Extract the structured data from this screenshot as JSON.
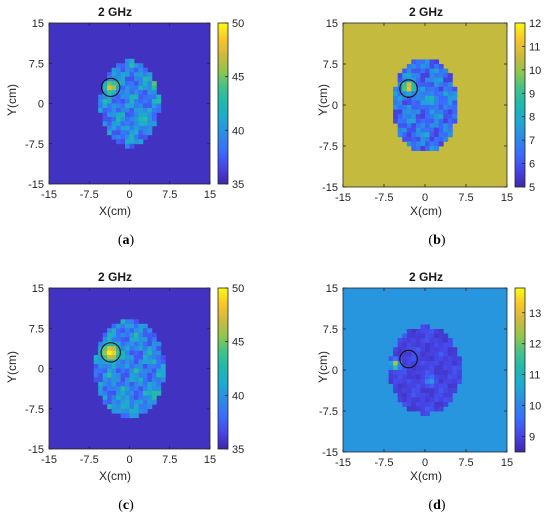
{
  "palette": [
    "#3e26a8",
    "#4744e6",
    "#3a6bfc",
    "#2c8ae6",
    "#1fa8d3",
    "#1eb8b0",
    "#3fc28b",
    "#8fc64d",
    "#cdb93c",
    "#f9c52a",
    "#f9fb0e"
  ],
  "chart_data": [
    {
      "id": "a",
      "type": "heatmap",
      "title": "2 GHz",
      "xlabel": "X(cm)",
      "ylabel": "Y(cm)",
      "xlim": [
        -15,
        15
      ],
      "ylim": [
        -15,
        15
      ],
      "xticks": [
        "-15",
        "-7.5",
        "0",
        "7.5",
        "15"
      ],
      "yticks": [
        "15",
        "7.5",
        "0",
        "-7.5",
        "-15"
      ],
      "clim": [
        35,
        50
      ],
      "cticks": [
        "50",
        "45",
        "40",
        "35"
      ],
      "background_value": 35.6,
      "inside_base_value": 37,
      "inside_texture": 0.6,
      "ellipse": {
        "cx": 0,
        "cy": 0,
        "rx": 5.5,
        "ry": 8
      },
      "target": {
        "x": -3.5,
        "y": 3,
        "r": 1.7
      },
      "hotspots": [
        {
          "x": -3.5,
          "y": 3,
          "r": 1.2,
          "value": 48
        },
        {
          "x": 5,
          "y": 3.5,
          "r": 1.0,
          "value": 46
        },
        {
          "x": 2.5,
          "y": -3,
          "r": 1.4,
          "value": 43
        }
      ],
      "caption": "a"
    },
    {
      "id": "b",
      "type": "heatmap",
      "title": "2 GHz",
      "xlabel": "X(cm)",
      "ylabel": "Y(cm)",
      "xlim": [
        -15,
        15
      ],
      "ylim": [
        -15,
        15
      ],
      "xticks": [
        "-15",
        "-7.5",
        "0",
        "7.5",
        "15"
      ],
      "yticks": [
        "15",
        "7.5",
        "0",
        "-7.5",
        "-15"
      ],
      "clim": [
        5,
        12
      ],
      "cticks": [
        "12",
        "11",
        "10",
        "9",
        "8",
        "7",
        "6",
        "5"
      ],
      "background_value": 10.5,
      "inside_base_value": 5.6,
      "inside_texture": 0.55,
      "ellipse": {
        "cx": 0,
        "cy": 0,
        "rx": 6,
        "ry": 8.5
      },
      "target": {
        "x": -3,
        "y": 3,
        "r": 1.6
      },
      "hotspots": [
        {
          "x": -3,
          "y": 3.3,
          "r": 1.1,
          "value": 11.5
        },
        {
          "x": 1,
          "y": 1,
          "r": 1.2,
          "value": 8.5
        }
      ],
      "caption": "b"
    },
    {
      "id": "c",
      "type": "heatmap",
      "title": "2 GHz",
      "xlabel": "X(cm)",
      "ylabel": "Y(cm)",
      "xlim": [
        -15,
        15
      ],
      "ylim": [
        -15,
        15
      ],
      "xticks": [
        "-15",
        "-7.5",
        "0",
        "7.5",
        "15"
      ],
      "yticks": [
        "15",
        "7.5",
        "0",
        "-7.5",
        "-15"
      ],
      "clim": [
        35,
        50
      ],
      "cticks": [
        "50",
        "45",
        "40",
        "35"
      ],
      "background_value": 35.6,
      "inside_base_value": 37,
      "inside_texture": 0.6,
      "ellipse": {
        "cx": 0,
        "cy": 0,
        "rx": 6.5,
        "ry": 9
      },
      "target": {
        "x": -3.5,
        "y": 3,
        "r": 1.8
      },
      "hotspots": [
        {
          "x": -3.5,
          "y": 3,
          "r": 1.6,
          "value": 50
        },
        {
          "x": 5,
          "y": -5,
          "r": 1.2,
          "value": 44
        },
        {
          "x": -1,
          "y": -7,
          "r": 1.2,
          "value": 42
        }
      ],
      "caption": "c"
    },
    {
      "id": "d",
      "type": "heatmap",
      "title": "2 GHz",
      "xlabel": "X(cm)",
      "ylabel": "Y(cm)",
      "xlim": [
        -15,
        15
      ],
      "ylim": [
        -15,
        15
      ],
      "xticks": [
        "-15",
        "-7.5",
        "0",
        "7.5",
        "15"
      ],
      "yticks": [
        "15",
        "7.5",
        "0",
        "-7.5",
        "-15"
      ],
      "clim": [
        8.5,
        13.8
      ],
      "cticks": [
        "13",
        "12",
        "11",
        "10",
        "9"
      ],
      "background_value": 10.3,
      "inside_base_value": 8.8,
      "inside_texture": 0.15,
      "ellipse": {
        "cx": 0,
        "cy": 0,
        "rx": 6.5,
        "ry": 8
      },
      "target": {
        "x": -3,
        "y": 2,
        "r": 1.6
      },
      "hotspots": [
        {
          "x": -5.5,
          "y": 1,
          "r": 0.8,
          "value": 12.8
        },
        {
          "x": 1,
          "y": -2,
          "r": 0.8,
          "value": 10.5
        }
      ],
      "caption": "d"
    }
  ]
}
